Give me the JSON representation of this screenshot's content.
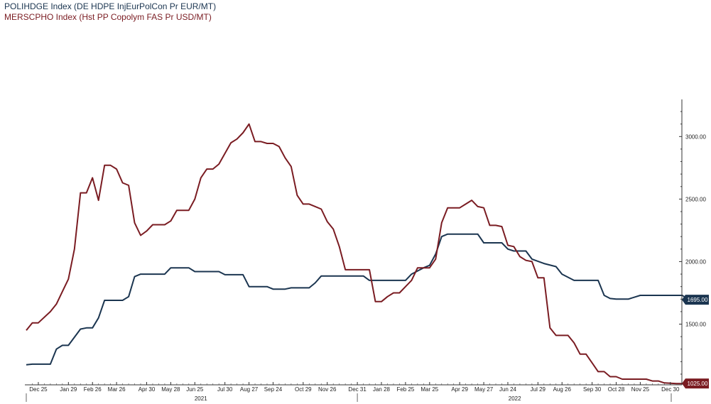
{
  "chart_data": {
    "type": "line",
    "legend_placement": "top-left",
    "grid": false,
    "x_start": "2020-12-11",
    "x_end": "2022-12-31",
    "x_ticks": [
      {
        "date": "2020-12-25",
        "label": "Dec 25"
      },
      {
        "date": "2021-01-29",
        "label": "Jan 29"
      },
      {
        "date": "2021-02-26",
        "label": "Feb 26"
      },
      {
        "date": "2021-03-26",
        "label": "Mar 26"
      },
      {
        "date": "2021-04-30",
        "label": "Apr 30"
      },
      {
        "date": "2021-05-28",
        "label": "May 28"
      },
      {
        "date": "2021-06-25",
        "label": "Jun 25"
      },
      {
        "date": "2021-07-30",
        "label": "Jul 30"
      },
      {
        "date": "2021-08-27",
        "label": "Aug 27"
      },
      {
        "date": "2021-09-24",
        "label": "Sep 24"
      },
      {
        "date": "2021-10-29",
        "label": "Oct 29"
      },
      {
        "date": "2021-11-26",
        "label": "Nov 26"
      },
      {
        "date": "2021-12-31",
        "label": "Dec 31"
      },
      {
        "date": "2022-01-28",
        "label": "Jan 28"
      },
      {
        "date": "2022-02-25",
        "label": "Feb 25"
      },
      {
        "date": "2022-03-25",
        "label": "Mar 25"
      },
      {
        "date": "2022-04-29",
        "label": "Apr 29"
      },
      {
        "date": "2022-05-27",
        "label": "May 27"
      },
      {
        "date": "2022-06-24",
        "label": "Jun 24"
      },
      {
        "date": "2022-07-29",
        "label": "Jul 29"
      },
      {
        "date": "2022-08-26",
        "label": "Aug 26"
      },
      {
        "date": "2022-09-30",
        "label": "Sep 30"
      },
      {
        "date": "2022-10-28",
        "label": "Oct 28"
      },
      {
        "date": "2022-11-25",
        "label": "Nov 25"
      },
      {
        "date": "2022-12-30",
        "label": "Dec 30"
      }
    ],
    "years": [
      {
        "label": "2021",
        "start": "2021-01-01",
        "end": "2021-12-31"
      },
      {
        "label": "2022",
        "start": "2022-01-01",
        "end": "2022-12-31"
      }
    ],
    "y_axis": {
      "position": "right",
      "ylim": [
        1060,
        3280
      ],
      "ticks": [
        {
          "value": 1500,
          "label": "1500.00"
        },
        {
          "value": 2000,
          "label": "2000.00"
        },
        {
          "value": 2500,
          "label": "2500.00"
        },
        {
          "value": 3000,
          "label": "3000.00"
        }
      ]
    },
    "series": [
      {
        "name": "POLIHDGE Index (DE HDPE InjEurPolCon Pr EUR/MT)",
        "color": "#1b3550",
        "last_value_label": "1695.00",
        "last_value": 1695,
        "points": [
          [
            "2020-12-11",
            1175
          ],
          [
            "2020-12-18",
            1180
          ],
          [
            "2021-01-08",
            1180
          ],
          [
            "2021-01-15",
            1300
          ],
          [
            "2021-01-22",
            1330
          ],
          [
            "2021-01-29",
            1330
          ],
          [
            "2021-02-12",
            1460
          ],
          [
            "2021-02-19",
            1470
          ],
          [
            "2021-02-26",
            1470
          ],
          [
            "2021-03-05",
            1550
          ],
          [
            "2021-03-12",
            1690
          ],
          [
            "2021-03-19",
            1690
          ],
          [
            "2021-04-02",
            1690
          ],
          [
            "2021-04-09",
            1720
          ],
          [
            "2021-04-16",
            1880
          ],
          [
            "2021-04-23",
            1900
          ],
          [
            "2021-05-21",
            1900
          ],
          [
            "2021-05-28",
            1950
          ],
          [
            "2021-06-18",
            1950
          ],
          [
            "2021-06-25",
            1920
          ],
          [
            "2021-07-23",
            1920
          ],
          [
            "2021-07-30",
            1895
          ],
          [
            "2021-08-20",
            1895
          ],
          [
            "2021-08-27",
            1800
          ],
          [
            "2021-09-17",
            1800
          ],
          [
            "2021-09-24",
            1780
          ],
          [
            "2021-10-08",
            1780
          ],
          [
            "2021-10-15",
            1790
          ],
          [
            "2021-11-05",
            1790
          ],
          [
            "2021-11-12",
            1830
          ],
          [
            "2021-11-19",
            1885
          ],
          [
            "2022-01-07",
            1885
          ],
          [
            "2022-01-14",
            1850
          ],
          [
            "2022-02-25",
            1850
          ],
          [
            "2022-03-04",
            1900
          ],
          [
            "2022-03-18",
            1950
          ],
          [
            "2022-03-25",
            1970
          ],
          [
            "2022-04-01",
            2060
          ],
          [
            "2022-04-08",
            2200
          ],
          [
            "2022-04-15",
            2220
          ],
          [
            "2022-05-20",
            2220
          ],
          [
            "2022-05-27",
            2150
          ],
          [
            "2022-06-17",
            2150
          ],
          [
            "2022-06-24",
            2100
          ],
          [
            "2022-07-01",
            2085
          ],
          [
            "2022-07-15",
            2085
          ],
          [
            "2022-07-22",
            2020
          ],
          [
            "2022-08-05",
            1985
          ],
          [
            "2022-08-19",
            1960
          ],
          [
            "2022-08-26",
            1900
          ],
          [
            "2022-09-09",
            1850
          ],
          [
            "2022-10-07",
            1850
          ],
          [
            "2022-10-14",
            1730
          ],
          [
            "2022-10-21",
            1705
          ],
          [
            "2022-10-28",
            1700
          ],
          [
            "2022-11-11",
            1700
          ],
          [
            "2022-11-25",
            1730
          ],
          [
            "2022-12-23",
            1730
          ],
          [
            "2023-01-13",
            1730
          ],
          [
            "2023-01-20",
            1695
          ],
          [
            "2023-02-03",
            1695
          ]
        ]
      },
      {
        "name": "MERSCPHO Index (Hst PP Copolym FAS Pr USD/MT)",
        "color": "#7a1c22",
        "last_value_label": "1025.00",
        "last_value": 1025,
        "points": [
          [
            "2020-12-11",
            1450
          ],
          [
            "2020-12-18",
            1510
          ],
          [
            "2020-12-25",
            1510
          ],
          [
            "2021-01-08",
            1600
          ],
          [
            "2021-01-15",
            1660
          ],
          [
            "2021-01-22",
            1760
          ],
          [
            "2021-01-29",
            1860
          ],
          [
            "2021-02-05",
            2100
          ],
          [
            "2021-02-12",
            2550
          ],
          [
            "2021-02-19",
            2550
          ],
          [
            "2021-02-26",
            2670
          ],
          [
            "2021-03-05",
            2490
          ],
          [
            "2021-03-12",
            2770
          ],
          [
            "2021-03-19",
            2770
          ],
          [
            "2021-03-26",
            2740
          ],
          [
            "2021-04-02",
            2630
          ],
          [
            "2021-04-09",
            2610
          ],
          [
            "2021-04-16",
            2310
          ],
          [
            "2021-04-23",
            2210
          ],
          [
            "2021-04-30",
            2245
          ],
          [
            "2021-05-07",
            2295
          ],
          [
            "2021-05-21",
            2295
          ],
          [
            "2021-05-28",
            2325
          ],
          [
            "2021-06-04",
            2410
          ],
          [
            "2021-06-18",
            2410
          ],
          [
            "2021-06-25",
            2500
          ],
          [
            "2021-07-02",
            2670
          ],
          [
            "2021-07-09",
            2740
          ],
          [
            "2021-07-16",
            2740
          ],
          [
            "2021-07-23",
            2780
          ],
          [
            "2021-08-06",
            2950
          ],
          [
            "2021-08-13",
            2980
          ],
          [
            "2021-08-20",
            3030
          ],
          [
            "2021-08-27",
            3100
          ],
          [
            "2021-09-03",
            2960
          ],
          [
            "2021-09-10",
            2960
          ],
          [
            "2021-09-17",
            2945
          ],
          [
            "2021-09-24",
            2945
          ],
          [
            "2021-10-01",
            2920
          ],
          [
            "2021-10-08",
            2830
          ],
          [
            "2021-10-15",
            2760
          ],
          [
            "2021-10-22",
            2530
          ],
          [
            "2021-10-29",
            2460
          ],
          [
            "2021-11-05",
            2460
          ],
          [
            "2021-11-12",
            2440
          ],
          [
            "2021-11-19",
            2420
          ],
          [
            "2021-11-26",
            2320
          ],
          [
            "2021-12-03",
            2260
          ],
          [
            "2021-12-10",
            2120
          ],
          [
            "2021-12-17",
            1935
          ],
          [
            "2022-01-14",
            1935
          ],
          [
            "2022-01-21",
            1680
          ],
          [
            "2022-01-28",
            1680
          ],
          [
            "2022-02-04",
            1720
          ],
          [
            "2022-02-11",
            1750
          ],
          [
            "2022-02-18",
            1750
          ],
          [
            "2022-02-25",
            1800
          ],
          [
            "2022-03-04",
            1850
          ],
          [
            "2022-03-11",
            1950
          ],
          [
            "2022-03-25",
            1950
          ],
          [
            "2022-04-01",
            2020
          ],
          [
            "2022-04-08",
            2310
          ],
          [
            "2022-04-15",
            2430
          ],
          [
            "2022-04-29",
            2430
          ],
          [
            "2022-05-06",
            2460
          ],
          [
            "2022-05-13",
            2490
          ],
          [
            "2022-05-20",
            2440
          ],
          [
            "2022-05-27",
            2430
          ],
          [
            "2022-06-03",
            2290
          ],
          [
            "2022-06-10",
            2290
          ],
          [
            "2022-06-17",
            2280
          ],
          [
            "2022-06-24",
            2130
          ],
          [
            "2022-07-01",
            2120
          ],
          [
            "2022-07-08",
            2040
          ],
          [
            "2022-07-15",
            2010
          ],
          [
            "2022-07-22",
            2000
          ],
          [
            "2022-07-29",
            1870
          ],
          [
            "2022-08-05",
            1870
          ],
          [
            "2022-08-12",
            1470
          ],
          [
            "2022-08-19",
            1410
          ],
          [
            "2022-09-02",
            1410
          ],
          [
            "2022-09-09",
            1350
          ],
          [
            "2022-09-16",
            1260
          ],
          [
            "2022-09-23",
            1260
          ],
          [
            "2022-09-30",
            1190
          ],
          [
            "2022-10-07",
            1120
          ],
          [
            "2022-10-14",
            1120
          ],
          [
            "2022-10-21",
            1080
          ],
          [
            "2022-10-28",
            1080
          ],
          [
            "2022-11-04",
            1060
          ],
          [
            "2022-12-02",
            1060
          ],
          [
            "2022-12-09",
            1045
          ],
          [
            "2022-12-16",
            1045
          ],
          [
            "2022-12-23",
            1030
          ],
          [
            "2023-01-06",
            1025
          ],
          [
            "2023-01-27",
            1025
          ],
          [
            "2023-02-03",
            1025
          ]
        ]
      }
    ]
  }
}
